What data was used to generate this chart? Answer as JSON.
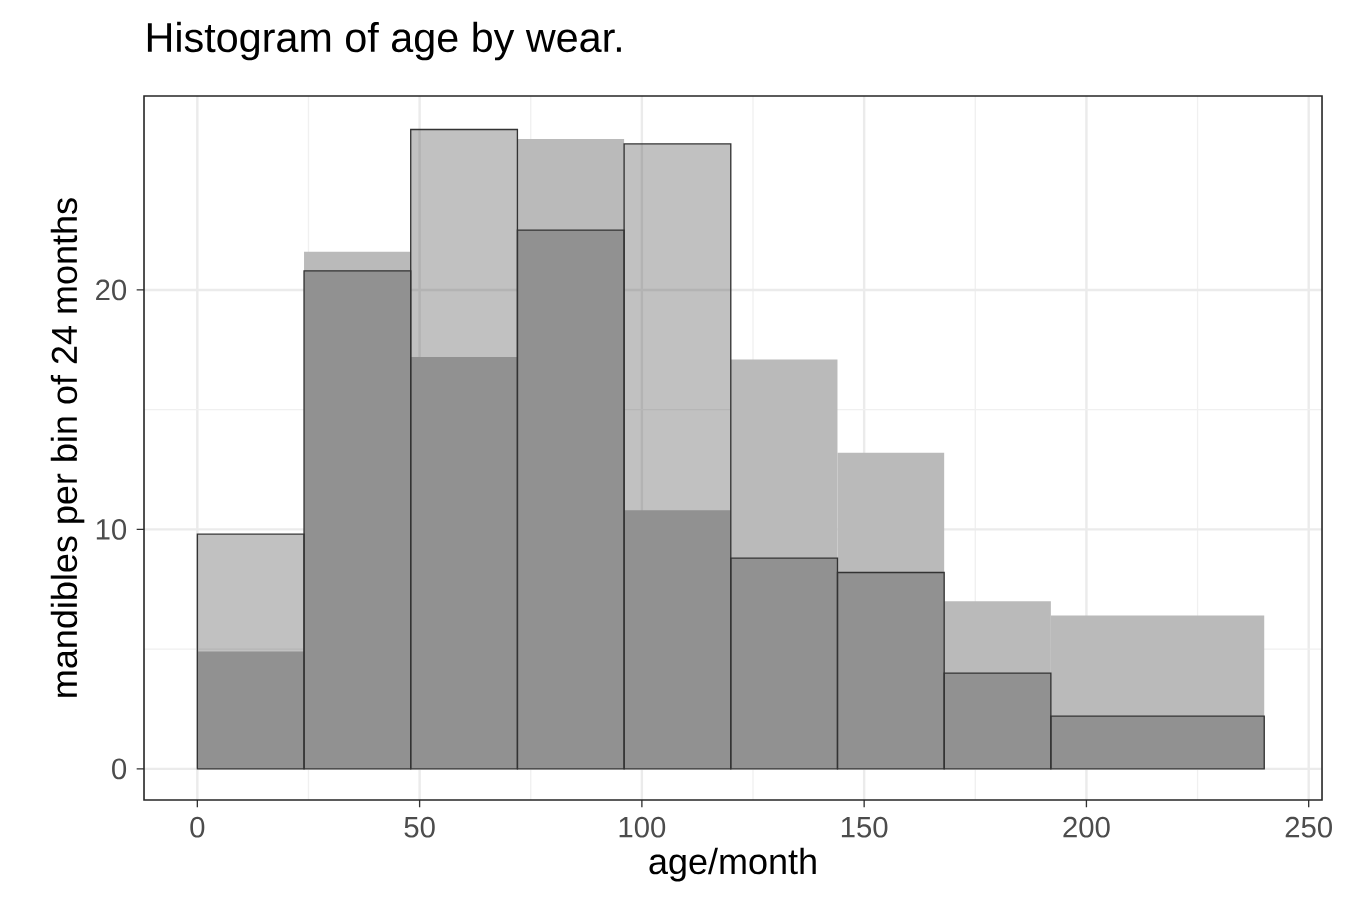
{
  "chart_data": {
    "type": "histogram",
    "title": "Histogram of age by wear.",
    "xlabel": "age/month",
    "ylabel": "mandibles per bin of 24 months",
    "bins": [
      0,
      24,
      48,
      72,
      96,
      120,
      144,
      168,
      192,
      240
    ],
    "series": [
      {
        "color": "#bababa",
        "values": [
          4.9,
          21.6,
          17.2,
          26.3,
          10.8,
          17.1,
          13.2,
          7.0,
          6.4
        ]
      },
      {
        "color": "#333333",
        "values": [
          9.8,
          20.8,
          26.7,
          22.5,
          26.1,
          8.8,
          8.2,
          4.0,
          2.2
        ]
      }
    ],
    "xlim": [
      -12,
      253
    ],
    "ylim": [
      -1.3,
      28.1
    ],
    "xticks": [
      0,
      50,
      100,
      150,
      200,
      250
    ],
    "yticks": [
      0,
      10,
      20
    ],
    "grid": true
  }
}
